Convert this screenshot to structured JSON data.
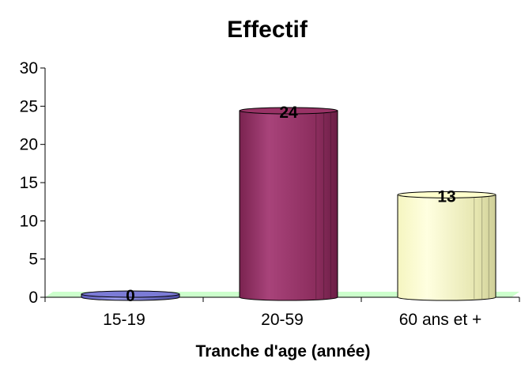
{
  "chart_data": {
    "type": "bar",
    "title": "Effectif",
    "xlabel": "Tranche d'age (année)",
    "ylabel": "",
    "categories": [
      "15-19",
      "20-59",
      "60 ans et +"
    ],
    "values": [
      0,
      24,
      13
    ],
    "ylim": [
      0,
      30
    ],
    "yticks": [
      0,
      5,
      10,
      15,
      20,
      25,
      30
    ],
    "grid": false,
    "legend": "none",
    "bar_style": "3d-cylinder",
    "colors": [
      "#7b7bd6",
      "#993366",
      "#ffffcc"
    ],
    "floor_color": "#ccffcc"
  }
}
